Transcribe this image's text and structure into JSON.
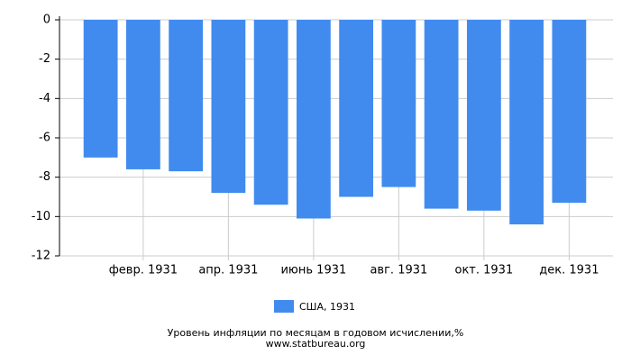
{
  "chart_data": {
    "type": "bar",
    "categories": [
      null,
      "февр. 1931",
      null,
      "апр. 1931",
      null,
      "июнь 1931",
      null,
      "авг. 1931",
      null,
      "окт. 1931",
      null,
      "дек. 1931"
    ],
    "series": [
      {
        "name": "США, 1931",
        "color": "#418bef",
        "values": [
          -7.0,
          -7.6,
          -7.7,
          -8.8,
          -9.4,
          -10.1,
          -9.0,
          -8.5,
          -9.6,
          -9.7,
          -10.4,
          -9.3
        ]
      }
    ],
    "ylim": [
      -12,
      0
    ],
    "yticks": [
      0,
      -2,
      -4,
      -6,
      -8,
      -10,
      -12
    ],
    "grid": true,
    "legend": "bottom",
    "footer": [
      "Уровень инфляции по месяцам в годовом исчислении,%",
      "www.statbureau.org"
    ]
  }
}
